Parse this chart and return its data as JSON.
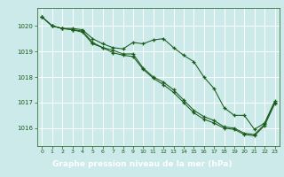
{
  "bg_color": "#cceaea",
  "plot_bg_color": "#cceaea",
  "grid_color": "#ffffff",
  "line_color": "#1a5c1a",
  "xlabel_bg": "#2d6e2d",
  "xlabel_fg": "#ffffff",
  "xlabel": "Graphe pression niveau de la mer (hPa)",
  "ylim": [
    1015.3,
    1020.7
  ],
  "yticks": [
    1016,
    1017,
    1018,
    1019,
    1020
  ],
  "xticks": [
    0,
    1,
    2,
    3,
    4,
    5,
    6,
    7,
    8,
    9,
    10,
    11,
    12,
    13,
    14,
    15,
    16,
    17,
    18,
    19,
    20,
    21,
    22,
    23
  ],
  "series1_x": [
    0,
    1,
    2,
    3,
    4,
    5,
    6,
    7,
    8,
    9,
    10,
    11,
    12,
    13,
    14,
    15,
    16,
    17,
    18,
    19,
    20,
    21,
    22,
    23
  ],
  "series1_y": [
    1020.35,
    1020.0,
    1019.9,
    1019.9,
    1019.85,
    1019.5,
    1019.3,
    1019.15,
    1019.1,
    1019.35,
    1019.3,
    1019.45,
    1019.5,
    1019.15,
    1018.85,
    1018.6,
    1018.0,
    1017.55,
    1016.8,
    1016.5,
    1016.5,
    1015.95,
    1016.2,
    1017.05
  ],
  "series2_x": [
    0,
    1,
    2,
    3,
    4,
    5,
    6,
    7,
    8,
    9,
    10,
    11,
    12,
    13,
    14,
    15,
    16,
    17,
    18,
    19,
    20,
    21,
    22,
    23
  ],
  "series2_y": [
    1020.35,
    1020.0,
    1019.9,
    1019.85,
    1019.8,
    1019.35,
    1019.15,
    1019.05,
    1018.9,
    1018.9,
    1018.35,
    1018.0,
    1017.8,
    1017.5,
    1017.1,
    1016.7,
    1016.45,
    1016.3,
    1016.05,
    1016.0,
    1015.8,
    1015.75,
    1016.15,
    1017.0
  ],
  "series3_x": [
    0,
    1,
    2,
    3,
    4,
    5,
    6,
    7,
    8,
    9,
    10,
    11,
    12,
    13,
    14,
    15,
    16,
    17,
    18,
    19,
    20,
    21,
    22,
    23
  ],
  "series3_y": [
    1020.35,
    1020.0,
    1019.9,
    1019.85,
    1019.75,
    1019.3,
    1019.15,
    1018.95,
    1018.85,
    1018.8,
    1018.3,
    1017.95,
    1017.7,
    1017.4,
    1017.0,
    1016.6,
    1016.35,
    1016.2,
    1016.0,
    1015.95,
    1015.75,
    1015.7,
    1016.1,
    1016.95
  ]
}
